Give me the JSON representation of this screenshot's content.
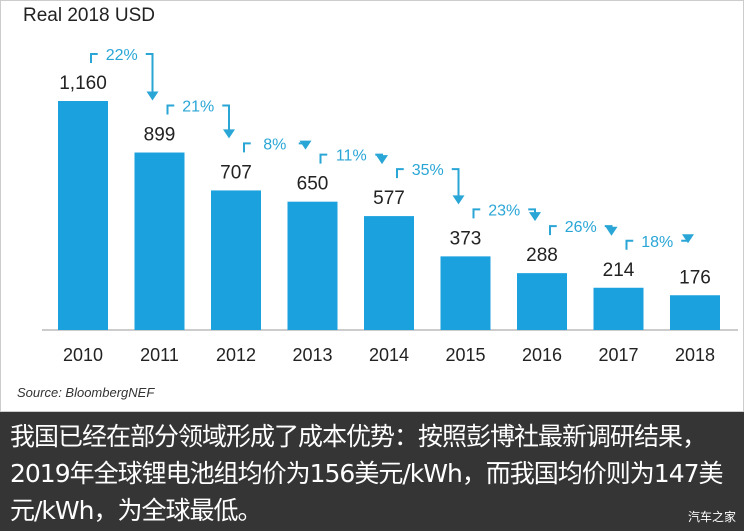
{
  "chart_data": {
    "type": "bar",
    "title": "",
    "ylabel": "Real 2018 USD",
    "categories": [
      "2010",
      "2011",
      "2012",
      "2013",
      "2014",
      "2015",
      "2016",
      "2017",
      "2018"
    ],
    "values": [
      1160,
      899,
      707,
      650,
      577,
      373,
      288,
      214,
      176
    ],
    "value_labels": [
      "1,160",
      "899",
      "707",
      "650",
      "577",
      "373",
      "288",
      "214",
      "176"
    ],
    "changes": [
      "22%",
      "21%",
      "8%",
      "11%",
      "35%",
      "23%",
      "26%",
      "18%"
    ],
    "ylim": [
      0,
      1160
    ],
    "grid": false,
    "bar_color": "#1ba1de",
    "annotation_color": "#2aa6d6",
    "source": "Source: BloombergNEF"
  },
  "caption": "我国已经在部分领域形成了成本优势：按照彭博社最新调研结果，2019年全球锂电池组均价为156美元/kWh，而我国均价则为147美元/kWh，为全球最低。",
  "watermark": "汽车之家"
}
